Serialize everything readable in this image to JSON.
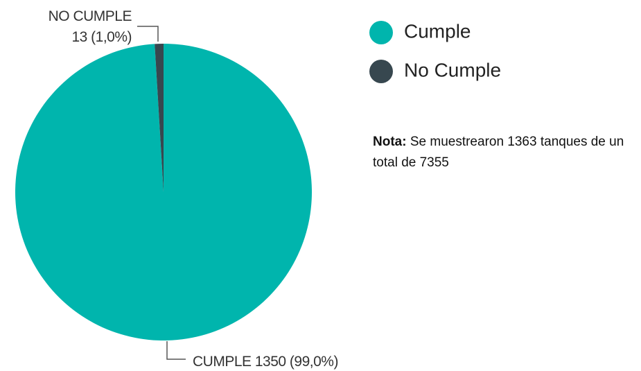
{
  "chart_data": {
    "type": "pie",
    "categories": [
      "Cumple",
      "No Cumple"
    ],
    "values": [
      1350,
      13
    ],
    "label_names": [
      "CUMPLE",
      "NO CUMPLE"
    ],
    "value_labels": [
      "1350 (99,0%)",
      "13 (1,0%)"
    ],
    "colors": [
      "#00b5ad",
      "#37474f"
    ],
    "legend": "top-right",
    "annotation": {
      "label": "Nota:",
      "text": "Se muestrearon 1363 tanques de un total de 7355"
    }
  }
}
